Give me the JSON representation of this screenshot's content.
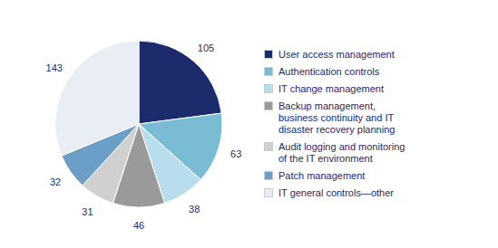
{
  "chart_data": {
    "type": "pie",
    "categories": [
      "User access management",
      "Authentication controls",
      "IT change management",
      "Backup management,\nbusiness continuity and IT\ndisaster recovery planning",
      "Audit logging and monitoring\nof the IT environment",
      "Patch management",
      "IT general controls—other"
    ],
    "values": [
      105,
      63,
      38,
      46,
      31,
      32,
      143
    ],
    "colors": [
      "#1c2b6b",
      "#7bbcd5",
      "#b8dded",
      "#9a9a9a",
      "#d0d0d0",
      "#6b9fc8",
      "#e8eef4"
    ],
    "data_labels": true,
    "legend": "right"
  }
}
